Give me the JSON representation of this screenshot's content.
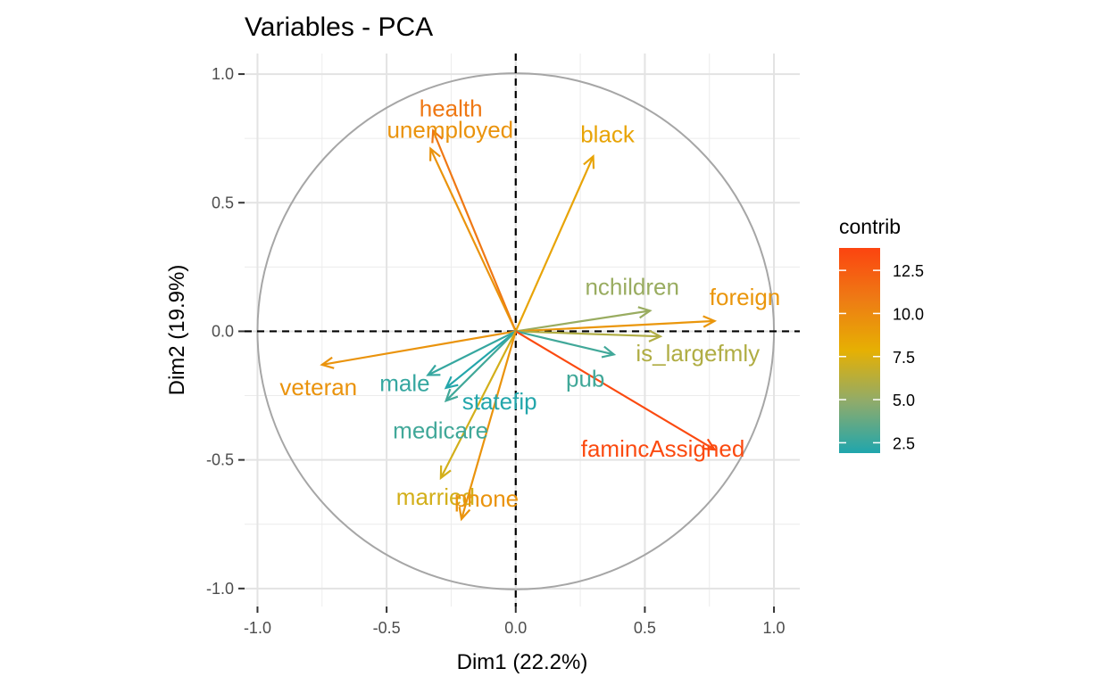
{
  "chart_data": {
    "type": "scatter",
    "subtype": "pca-variable-correlation-circle",
    "title": "Variables - PCA",
    "xlabel": "Dim1 (22.2%)",
    "ylabel": "Dim2 (19.9%)",
    "xlim": [
      -1.05,
      1.1
    ],
    "ylim": [
      -1.07,
      1.08
    ],
    "xticks": [
      -1.0,
      -0.5,
      0.0,
      0.5,
      1.0
    ],
    "xtick_labels": [
      "-1.0",
      "-0.5",
      "0.0",
      "0.5",
      "1.0"
    ],
    "yticks": [
      -1.0,
      -0.5,
      0.0,
      0.5,
      1.0
    ],
    "ytick_labels": [
      "-1.0",
      "-0.5",
      "0.0",
      "0.5",
      "1.0"
    ],
    "grid": true,
    "unit_circle": true,
    "legend": {
      "title": "contrib",
      "position": "right",
      "min": 1.9,
      "max": 13.8,
      "ticks": [
        2.5,
        5.0,
        7.5,
        10.0,
        12.5
      ],
      "tick_labels": [
        "2.5",
        "5.0",
        "7.5",
        "10.0",
        "12.5"
      ],
      "colors": [
        "#1fa6ad",
        "#8fab6b",
        "#e6b003",
        "#ee7b14",
        "#fc4410"
      ]
    },
    "variables": [
      {
        "name": "health",
        "x": -0.32,
        "y": 0.78,
        "contrib": 11.0
      },
      {
        "name": "unemployed",
        "x": -0.33,
        "y": 0.71,
        "contrib": 9.5
      },
      {
        "name": "black",
        "x": 0.3,
        "y": 0.68,
        "contrib": 8.5
      },
      {
        "name": "nchildren",
        "x": 0.52,
        "y": 0.08,
        "contrib": 5.2
      },
      {
        "name": "foreign",
        "x": 0.77,
        "y": 0.04,
        "contrib": 9.3
      },
      {
        "name": "is_largefmly",
        "x": 0.56,
        "y": -0.02,
        "contrib": 6.0
      },
      {
        "name": "pub",
        "x": 0.38,
        "y": -0.09,
        "contrib": 2.8
      },
      {
        "name": "famincAssigned",
        "x": 0.77,
        "y": -0.46,
        "contrib": 13.5
      },
      {
        "name": "veteran",
        "x": -0.75,
        "y": -0.13,
        "contrib": 9.5
      },
      {
        "name": "male",
        "x": -0.34,
        "y": -0.17,
        "contrib": 2.5
      },
      {
        "name": "statefip",
        "x": -0.27,
        "y": -0.22,
        "contrib": 2.0
      },
      {
        "name": "medicare",
        "x": -0.27,
        "y": -0.27,
        "contrib": 2.8
      },
      {
        "name": "married",
        "x": -0.29,
        "y": -0.57,
        "contrib": 7.2
      },
      {
        "name": "phone",
        "x": -0.21,
        "y": -0.73,
        "contrib": 9.5
      }
    ]
  }
}
